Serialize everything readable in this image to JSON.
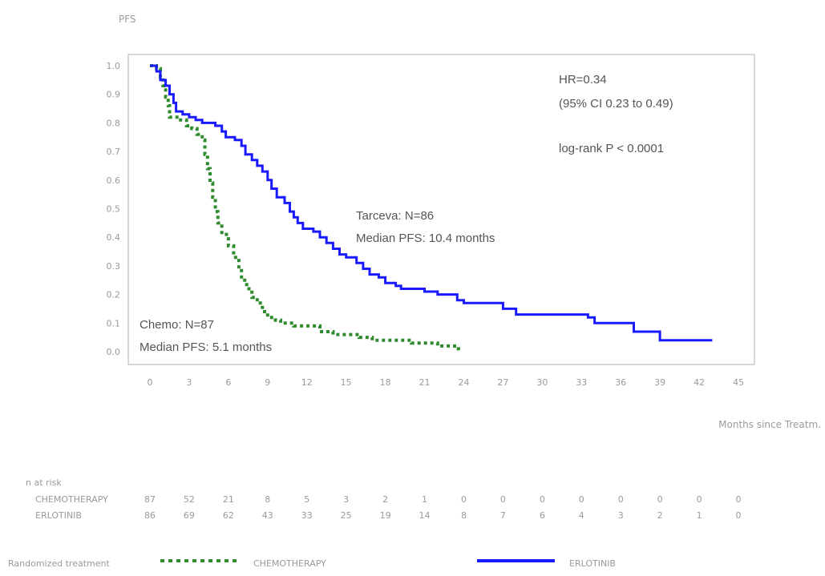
{
  "chart_data": {
    "type": "line",
    "ylabel": "PFS",
    "xlabel": "Months since Treatm.",
    "xlim": [
      0,
      45
    ],
    "ylim": [
      0,
      1
    ],
    "x_ticks": [
      "0",
      "3",
      "6",
      "9",
      "12",
      "15",
      "18",
      "21",
      "24",
      "27",
      "30",
      "33",
      "36",
      "39",
      "42",
      "45"
    ],
    "y_ticks": [
      "0.0",
      "0.1",
      "0.2",
      "0.3",
      "0.4",
      "0.5",
      "0.6",
      "0.7",
      "0.8",
      "0.9",
      "1.0"
    ],
    "annotations": {
      "hr": "HR=0.34",
      "ci": "(95% CI 0.23 to 0.49)",
      "logrank": "log-rank P < 0.0001",
      "tarceva_n": "Tarceva: N=86",
      "tarceva_median": "Median PFS: 10.4 months",
      "chemo_n": "Chemo: N=87",
      "chemo_median": "Median PFS: 5.1 months"
    },
    "series": [
      {
        "name": "CHEMOTHERAPY",
        "color": "#2e8b2e",
        "style": "dashed",
        "points": [
          [
            0,
            1.0
          ],
          [
            0.5,
            0.99
          ],
          [
            0.8,
            0.96
          ],
          [
            1.0,
            0.93
          ],
          [
            1.2,
            0.89
          ],
          [
            1.4,
            0.86
          ],
          [
            1.5,
            0.82
          ],
          [
            2.2,
            0.81
          ],
          [
            2.8,
            0.79
          ],
          [
            3.2,
            0.78
          ],
          [
            3.6,
            0.76
          ],
          [
            4.0,
            0.74
          ],
          [
            4.2,
            0.69
          ],
          [
            4.4,
            0.64
          ],
          [
            4.6,
            0.59
          ],
          [
            4.8,
            0.54
          ],
          [
            5.0,
            0.49
          ],
          [
            5.2,
            0.45
          ],
          [
            5.5,
            0.41
          ],
          [
            6.0,
            0.37
          ],
          [
            6.4,
            0.33
          ],
          [
            6.8,
            0.29
          ],
          [
            7.0,
            0.25
          ],
          [
            7.4,
            0.22
          ],
          [
            7.8,
            0.19
          ],
          [
            8.2,
            0.17
          ],
          [
            8.6,
            0.14
          ],
          [
            9.0,
            0.12
          ],
          [
            9.6,
            0.11
          ],
          [
            10.0,
            0.1
          ],
          [
            11.0,
            0.09
          ],
          [
            13.0,
            0.07
          ],
          [
            14.0,
            0.06
          ],
          [
            16.0,
            0.05
          ],
          [
            17.0,
            0.04
          ],
          [
            20.0,
            0.03
          ],
          [
            22.0,
            0.02
          ],
          [
            23.3,
            0.01
          ],
          [
            23.6,
            0.0
          ]
        ]
      },
      {
        "name": "ERLOTINIB",
        "color": "#1a1aff",
        "style": "solid",
        "points": [
          [
            0,
            1.0
          ],
          [
            0.5,
            0.98
          ],
          [
            0.8,
            0.95
          ],
          [
            1.2,
            0.93
          ],
          [
            1.5,
            0.9
          ],
          [
            1.8,
            0.87
          ],
          [
            2.0,
            0.84
          ],
          [
            2.5,
            0.83
          ],
          [
            3.0,
            0.82
          ],
          [
            3.5,
            0.81
          ],
          [
            4.0,
            0.8
          ],
          [
            5.0,
            0.79
          ],
          [
            5.5,
            0.77
          ],
          [
            5.8,
            0.75
          ],
          [
            6.5,
            0.74
          ],
          [
            7.0,
            0.72
          ],
          [
            7.3,
            0.69
          ],
          [
            7.8,
            0.67
          ],
          [
            8.2,
            0.65
          ],
          [
            8.6,
            0.63
          ],
          [
            9.0,
            0.6
          ],
          [
            9.3,
            0.57
          ],
          [
            9.7,
            0.54
          ],
          [
            10.3,
            0.52
          ],
          [
            10.7,
            0.49
          ],
          [
            11.0,
            0.47
          ],
          [
            11.3,
            0.45
          ],
          [
            11.7,
            0.43
          ],
          [
            12.5,
            0.42
          ],
          [
            13.0,
            0.4
          ],
          [
            13.5,
            0.38
          ],
          [
            14.0,
            0.36
          ],
          [
            14.5,
            0.34
          ],
          [
            15.0,
            0.33
          ],
          [
            15.8,
            0.31
          ],
          [
            16.3,
            0.29
          ],
          [
            16.8,
            0.27
          ],
          [
            17.5,
            0.26
          ],
          [
            18.0,
            0.24
          ],
          [
            18.8,
            0.23
          ],
          [
            19.2,
            0.22
          ],
          [
            21.0,
            0.21
          ],
          [
            22.0,
            0.2
          ],
          [
            23.5,
            0.18
          ],
          [
            24.0,
            0.17
          ],
          [
            27.0,
            0.15
          ],
          [
            28.0,
            0.13
          ],
          [
            33.5,
            0.12
          ],
          [
            34.0,
            0.1
          ],
          [
            37.0,
            0.07
          ],
          [
            39.0,
            0.04
          ],
          [
            43.0,
            0.04
          ]
        ]
      }
    ],
    "at_risk": {
      "title": "n at risk",
      "rows": [
        {
          "label": "CHEMOTHERAPY",
          "values": [
            "87",
            "52",
            "21",
            "8",
            "5",
            "3",
            "2",
            "1",
            "0",
            "0",
            "0",
            "0",
            "0",
            "0",
            "0",
            "0"
          ]
        },
        {
          "label": "ERLOTINIB",
          "values": [
            "86",
            "69",
            "62",
            "43",
            "33",
            "25",
            "19",
            "14",
            "8",
            "7",
            "6",
            "4",
            "3",
            "2",
            "1",
            "0"
          ]
        }
      ]
    },
    "legend": {
      "title": "Randomized treatment",
      "placement": "bottom",
      "items": [
        "CHEMOTHERAPY",
        "ERLOTINIB"
      ]
    }
  }
}
